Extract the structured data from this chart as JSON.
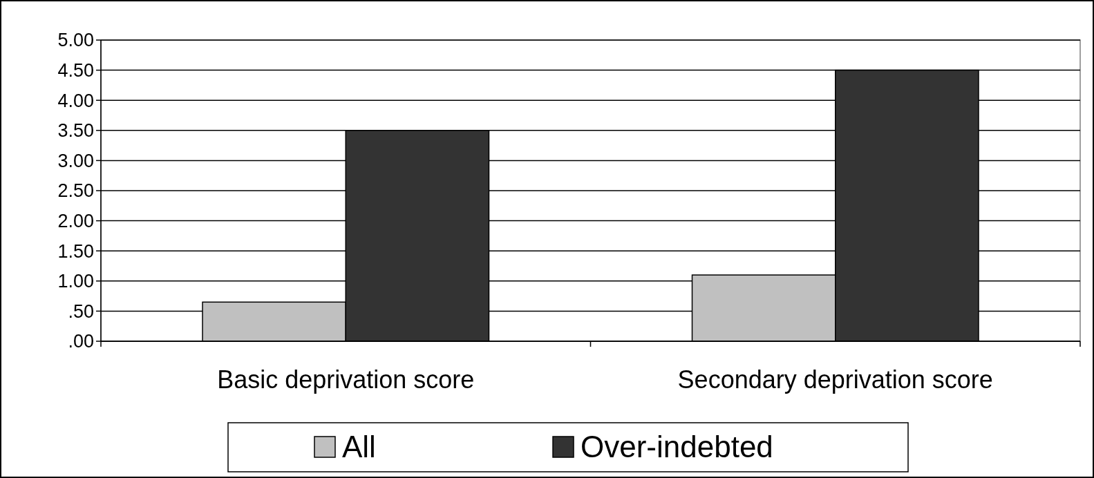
{
  "chart_data": {
    "type": "bar",
    "categories": [
      "Basic deprivation score",
      "Secondary deprivation score"
    ],
    "series": [
      {
        "name": "All",
        "color": "#c0c0c0",
        "values": [
          0.65,
          1.1
        ]
      },
      {
        "name": "Over-indebted",
        "color": "#333333",
        "values": [
          3.5,
          4.5
        ]
      }
    ],
    "ylim": [
      0,
      5
    ],
    "yticks": [
      {
        "value": 0,
        "label": ".00"
      },
      {
        "value": 0.5,
        "label": ".50"
      },
      {
        "value": 1,
        "label": "1.00"
      },
      {
        "value": 1.5,
        "label": "1.50"
      },
      {
        "value": 2,
        "label": "2.00"
      },
      {
        "value": 2.5,
        "label": "2.50"
      },
      {
        "value": 3,
        "label": "3.00"
      },
      {
        "value": 3.5,
        "label": "3.50"
      },
      {
        "value": 4,
        "label": "4.00"
      },
      {
        "value": 4.5,
        "label": "4.50"
      },
      {
        "value": 5,
        "label": "5.00"
      }
    ],
    "grid": "y",
    "legend": "bottom"
  }
}
